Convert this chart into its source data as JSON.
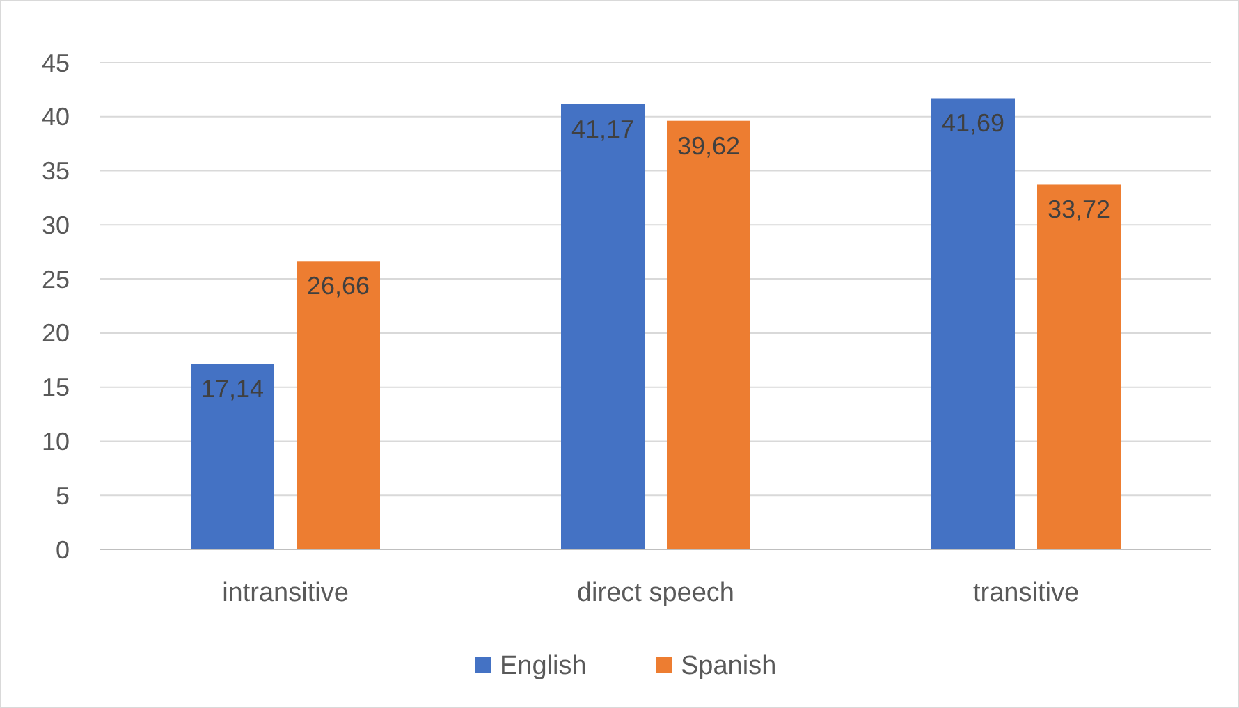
{
  "chart_data": {
    "type": "bar",
    "categories": [
      "intransitive",
      "direct speech",
      "transitive"
    ],
    "series": [
      {
        "name": "English",
        "color": "#4472c4",
        "values": [
          17.14,
          41.17,
          41.69
        ],
        "value_labels": [
          "17,14",
          "41,17",
          "41,69"
        ]
      },
      {
        "name": "Spanish",
        "color": "#ed7d31",
        "values": [
          26.66,
          39.62,
          33.72
        ],
        "value_labels": [
          "26,66",
          "39,62",
          "33,72"
        ]
      }
    ],
    "ylim": [
      0,
      45
    ],
    "yticks": [
      0,
      5,
      10,
      15,
      20,
      25,
      30,
      35,
      40,
      45
    ],
    "grid": "y",
    "legend": "bottom"
  }
}
